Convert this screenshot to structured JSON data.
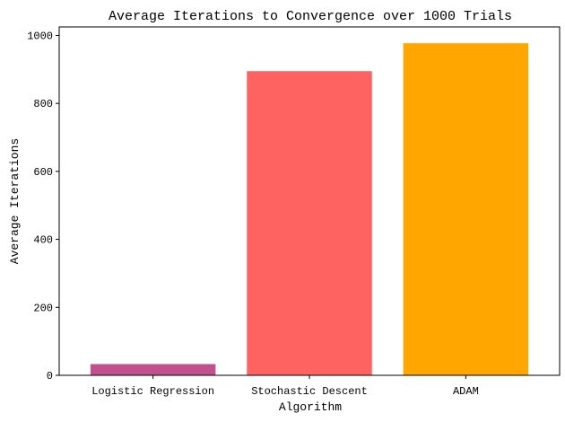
{
  "chart_data": {
    "type": "bar",
    "title": "Average Iterations to Convergence over 1000 Trials",
    "xlabel": "Algorithm",
    "ylabel": "Average Iterations",
    "categories": [
      "Logistic Regression",
      "Stochastic Descent",
      "ADAM"
    ],
    "values": [
      33,
      895,
      977
    ],
    "colors": [
      "#c0508e",
      "#ff6361",
      "#ffa600"
    ],
    "ylim": [
      0,
      1025
    ],
    "yticks": [
      0,
      200,
      400,
      600,
      800,
      1000
    ],
    "grid": false
  }
}
